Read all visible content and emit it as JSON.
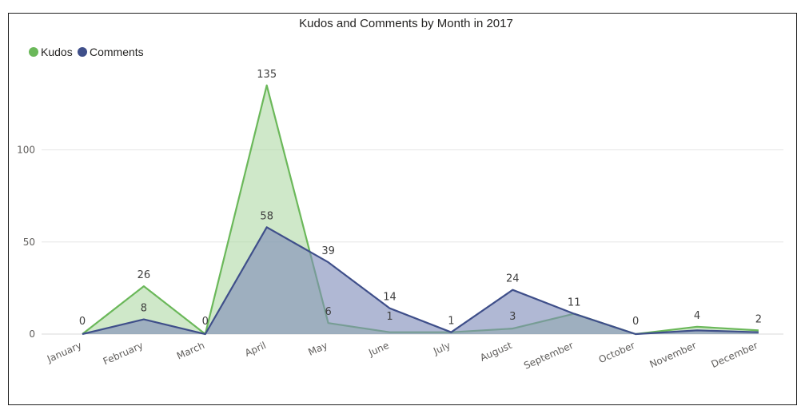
{
  "chart_data": {
    "type": "area",
    "title": "Kudos and Comments by Month in 2017",
    "categories": [
      "January",
      "February",
      "March",
      "April",
      "May",
      "June",
      "July",
      "August",
      "September",
      "October",
      "November",
      "December"
    ],
    "series": [
      {
        "name": "Kudos",
        "color": "#6bb85a",
        "fill": "#a8d69c",
        "values": [
          0,
          26,
          0,
          135,
          6,
          1,
          1,
          3,
          11,
          0,
          4,
          2
        ]
      },
      {
        "name": "Comments",
        "color": "#3f4f8a",
        "fill": "#7f8cba",
        "values": [
          0,
          8,
          0,
          58,
          39,
          14,
          1,
          24,
          11,
          0,
          2,
          1
        ]
      }
    ],
    "data_labels": [
      {
        "text": "0",
        "category": "January",
        "value": 0,
        "series": "Kudos"
      },
      {
        "text": "26",
        "category": "February",
        "value": 26,
        "series": "Kudos"
      },
      {
        "text": "8",
        "category": "February",
        "value": 8,
        "series": "Comments"
      },
      {
        "text": "0",
        "category": "March",
        "value": 0,
        "series": "Kudos"
      },
      {
        "text": "135",
        "category": "April",
        "value": 135,
        "series": "Kudos"
      },
      {
        "text": "58",
        "category": "April",
        "value": 58,
        "series": "Comments"
      },
      {
        "text": "39",
        "category": "May",
        "value": 39,
        "series": "Comments"
      },
      {
        "text": "6",
        "category": "May",
        "value": 6,
        "series": "Kudos"
      },
      {
        "text": "14",
        "category": "June",
        "value": 14,
        "series": "Comments"
      },
      {
        "text": "1",
        "category": "June",
        "value": 1,
        "series": "Kudos"
      },
      {
        "text": "1",
        "category": "July",
        "value": 1,
        "series": "Kudos"
      },
      {
        "text": "24",
        "category": "August",
        "value": 24,
        "series": "Comments"
      },
      {
        "text": "3",
        "category": "August",
        "value": 3,
        "series": "Kudos"
      },
      {
        "text": "11",
        "category": "September",
        "value": 11,
        "series": "Kudos"
      },
      {
        "text": "0",
        "category": "October",
        "value": 0,
        "series": "Kudos"
      },
      {
        "text": "4",
        "category": "November",
        "value": 4,
        "series": "Kudos"
      },
      {
        "text": "2",
        "category": "December",
        "value": 2,
        "series": "Kudos"
      }
    ],
    "yticks": [
      0,
      50,
      100
    ],
    "ylim": [
      0,
      135
    ],
    "grid": true,
    "legend": "top-left"
  }
}
